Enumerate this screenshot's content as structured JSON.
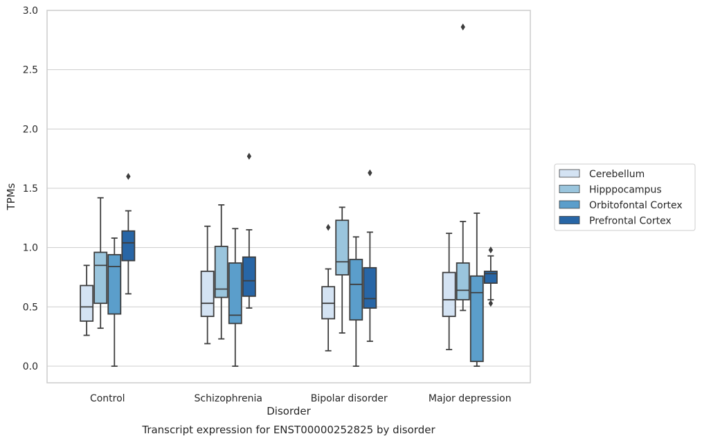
{
  "chart_data": {
    "type": "boxplot",
    "title": "Transcript expression for ENST00000252825 by disorder",
    "xlabel": "Disorder",
    "ylabel": "TPMs",
    "ylim": [
      -0.14,
      3.0
    ],
    "yticks": [
      "0.0",
      "0.5",
      "1.0",
      "1.5",
      "2.0",
      "2.5",
      "3.0"
    ],
    "grid": true,
    "legend_position": "right",
    "categories": [
      "Control",
      "Schizophrenia",
      "Bipolar disorder",
      "Major depression"
    ],
    "series": [
      {
        "name": "Cerebellum",
        "color": "#d4e3f3",
        "boxes": [
          {
            "whislo": 0.26,
            "q1": 0.38,
            "med": 0.5,
            "q3": 0.68,
            "whishi": 0.85,
            "fliers": []
          },
          {
            "whislo": 0.19,
            "q1": 0.42,
            "med": 0.53,
            "q3": 0.8,
            "whishi": 1.18,
            "fliers": []
          },
          {
            "whislo": 0.13,
            "q1": 0.4,
            "med": 0.53,
            "q3": 0.67,
            "whishi": 0.82,
            "fliers": [
              1.17
            ]
          },
          {
            "whislo": 0.14,
            "q1": 0.42,
            "med": 0.56,
            "q3": 0.79,
            "whishi": 1.12,
            "fliers": []
          }
        ]
      },
      {
        "name": "Hipppocampus",
        "color": "#9ac5dd",
        "boxes": [
          {
            "whislo": 0.32,
            "q1": 0.53,
            "med": 0.85,
            "q3": 0.96,
            "whishi": 1.42,
            "fliers": []
          },
          {
            "whislo": 0.23,
            "q1": 0.58,
            "med": 0.65,
            "q3": 1.01,
            "whishi": 1.36,
            "fliers": []
          },
          {
            "whislo": 0.28,
            "q1": 0.77,
            "med": 0.88,
            "q3": 1.23,
            "whishi": 1.34,
            "fliers": []
          },
          {
            "whislo": 0.47,
            "q1": 0.56,
            "med": 0.64,
            "q3": 0.87,
            "whishi": 1.22,
            "fliers": [
              2.86
            ]
          }
        ]
      },
      {
        "name": "Orbitofontal Cortex",
        "color": "#5b9ecb",
        "boxes": [
          {
            "whislo": 0.0,
            "q1": 0.44,
            "med": 0.84,
            "q3": 0.94,
            "whishi": 1.08,
            "fliers": []
          },
          {
            "whislo": 0.0,
            "q1": 0.36,
            "med": 0.43,
            "q3": 0.87,
            "whishi": 1.16,
            "fliers": []
          },
          {
            "whislo": 0.0,
            "q1": 0.39,
            "med": 0.69,
            "q3": 0.9,
            "whishi": 1.09,
            "fliers": []
          },
          {
            "whislo": 0.0,
            "q1": 0.04,
            "med": 0.62,
            "q3": 0.76,
            "whishi": 1.29,
            "fliers": []
          }
        ]
      },
      {
        "name": "Prefrontal Cortex",
        "color": "#2866a6",
        "boxes": [
          {
            "whislo": 0.61,
            "q1": 0.89,
            "med": 1.04,
            "q3": 1.14,
            "whishi": 1.31,
            "fliers": [
              1.6
            ]
          },
          {
            "whislo": 0.49,
            "q1": 0.59,
            "med": 0.72,
            "q3": 0.92,
            "whishi": 1.15,
            "fliers": [
              1.77
            ]
          },
          {
            "whislo": 0.21,
            "q1": 0.49,
            "med": 0.57,
            "q3": 0.83,
            "whishi": 1.13,
            "fliers": [
              1.63
            ]
          },
          {
            "whislo": 0.56,
            "q1": 0.7,
            "med": 0.78,
            "q3": 0.8,
            "whishi": 0.93,
            "fliers": [
              0.98,
              0.53
            ]
          }
        ]
      }
    ]
  }
}
